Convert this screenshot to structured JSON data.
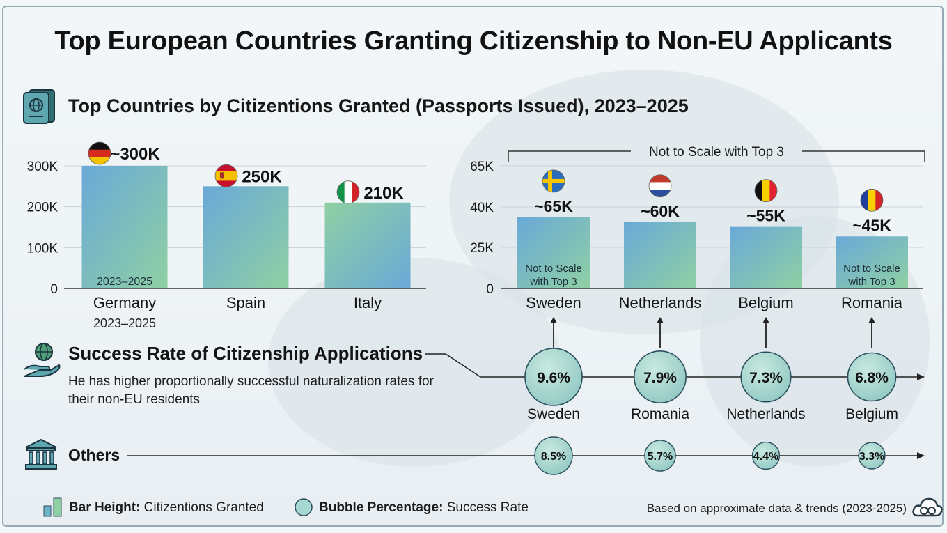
{
  "title": "Top European Countries Granting Citizenship to Non-EU Applicants",
  "subtitle": "Top Countries by Citizentions Granted (Passports Issued), 2023–2025",
  "chart_data": [
    {
      "type": "bar",
      "title": "",
      "categories": [
        "Germany",
        "Spain",
        "Italy"
      ],
      "values": [
        300000,
        250000,
        210000
      ],
      "value_labels": [
        "~300K",
        "250K",
        "210K"
      ],
      "flags": [
        "germany-flag",
        "spain-flag",
        "italy-flag"
      ],
      "ylim": [
        0,
        300000
      ],
      "yticks": [
        "0",
        "100K",
        "200K",
        "300K"
      ],
      "yticks_values": [
        0,
        100000,
        200000,
        300000
      ],
      "bar_inner_label": "2023–2025",
      "category_sublabel": "2023–2025",
      "grid": true
    },
    {
      "type": "bar",
      "title": "",
      "bracket_label": "Not to Scale with Top 3",
      "categories": [
        "Sweden",
        "Netherlands",
        "Belgium",
        "Romania"
      ],
      "values": [
        65000,
        60000,
        55000,
        45000
      ],
      "value_labels": [
        "~65K",
        "~60K",
        "~55K",
        "~45K"
      ],
      "flags": [
        "sweden-flag",
        "netherlands-flag",
        "belgium-flag",
        "romania-flag"
      ],
      "yticks": [
        "0",
        "25K",
        "40K",
        "65K"
      ],
      "inner_note": "Not to Scale with Top 3",
      "inner_note_bars": [
        "Sweden",
        "Romania"
      ],
      "grid": true
    },
    {
      "type": "bubble",
      "title": "Success Rate of Citizenship Applications",
      "description": "He has higher proportionally successful naturalization rates for their non-EU residents",
      "countries": [
        "Sweden",
        "Romania",
        "Netherlands",
        "Belgium"
      ],
      "rates": [
        9.6,
        7.9,
        7.3,
        6.8
      ],
      "rate_labels": [
        "9.6%",
        "7.9%",
        "7.3%",
        "6.8%"
      ],
      "others_label": "Others",
      "others_rates": [
        8.5,
        5.7,
        4.4,
        3.3
      ],
      "others_labels": [
        "8.5%",
        "5.7%",
        "4.4%",
        "3.3%"
      ]
    }
  ],
  "legend": {
    "bar_bold": "Bar Height:",
    "bar_text": " Citizentions Granted",
    "bubble_bold": "Bubble Percentage:",
    "bubble_text": " Success Rate"
  },
  "footnote": "Based on approximate data & trends (2023-2025)",
  "colors": {
    "bar_gradient": [
      "#6aa9d8",
      "#8dcfa4"
    ],
    "bubble_fill": "#a6d7d0",
    "bubble_stroke": "#2b4e5e"
  },
  "icons": [
    "passport-icon",
    "globe-hand-icon",
    "bank-icon",
    "bar-legend-icon",
    "bubble-legend-icon",
    "cloud-logo-icon"
  ]
}
